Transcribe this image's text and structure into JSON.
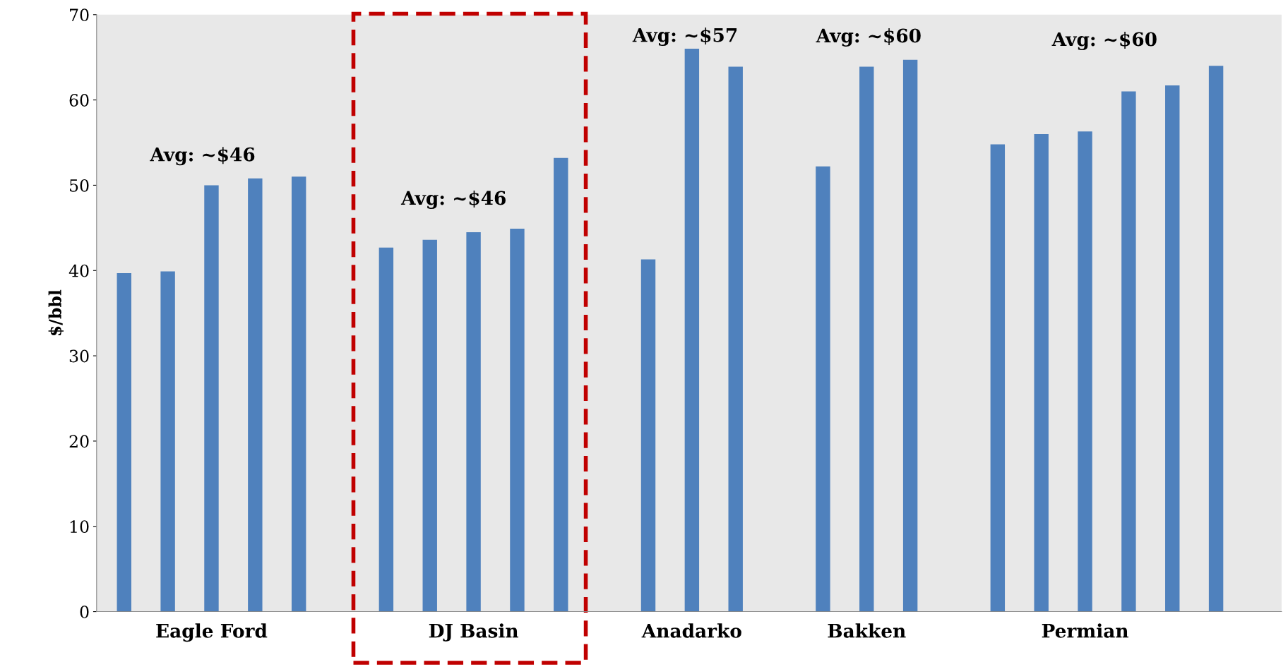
{
  "chart_data": {
    "type": "bar",
    "ylabel": "$/bbl",
    "categories": [
      null,
      null,
      "Eagle Ford",
      null,
      null,
      null,
      null,
      null,
      "DJ Basin",
      null,
      null,
      null,
      null,
      "Anadarko",
      null,
      null,
      null,
      "Bakken",
      null,
      null,
      null,
      null,
      "Permian",
      null,
      null,
      null,
      null
    ],
    "values": [
      39.7,
      39.9,
      50.0,
      50.8,
      51.0,
      null,
      42.7,
      43.6,
      44.5,
      44.9,
      53.2,
      null,
      41.3,
      66.0,
      63.9,
      null,
      52.2,
      63.9,
      64.7,
      null,
      54.8,
      56.0,
      56.3,
      61.0,
      61.7,
      64.0,
      null
    ],
    "color": "#4f81bd",
    "ylim": [
      0,
      70
    ],
    "yticks": [
      0,
      10,
      20,
      30,
      40,
      50,
      60,
      70
    ],
    "grid": false,
    "annotations": [
      "Avg: ~$46",
      "Avg: ~$46",
      "Avg: ~$57",
      "Avg: ~$60",
      "Avg: ~$60"
    ]
  }
}
